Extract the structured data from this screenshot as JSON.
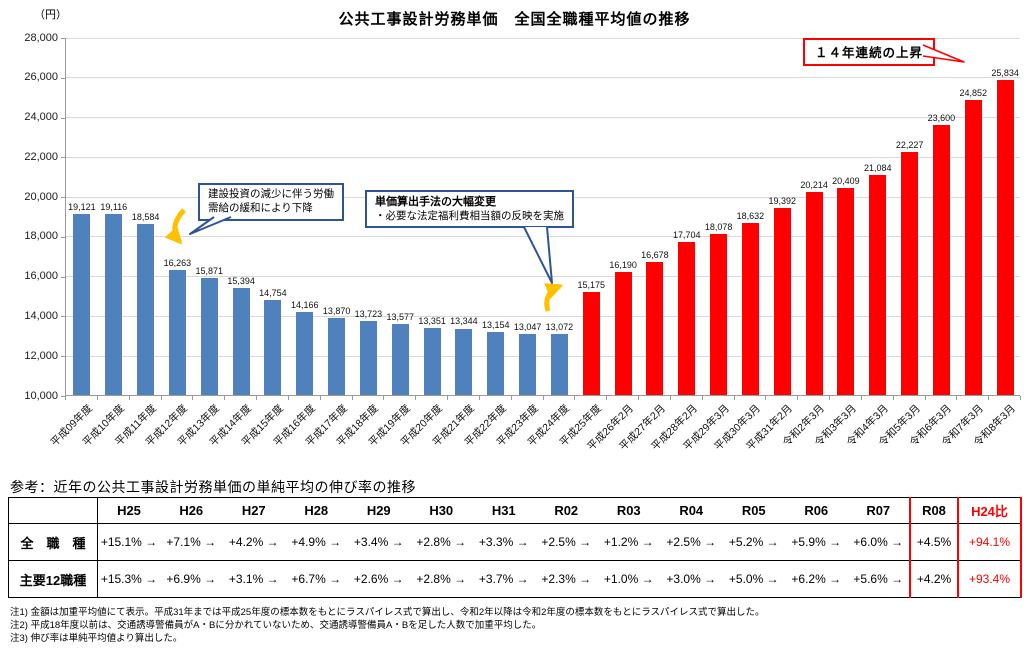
{
  "title": "公共工事設計労務単価　全国全職種平均値の推移",
  "y_unit": "（円）",
  "chart_data": {
    "type": "bar",
    "title": "公共工事設計労務単価　全国全職種平均値の推移",
    "ylabel": "（円）",
    "ylim": [
      10000,
      28000
    ],
    "ytick_step": 2000,
    "grid": true,
    "legend": "none",
    "categories": [
      "平成09年度",
      "平成10年度",
      "平成11年度",
      "平成12年度",
      "平成13年度",
      "平成14年度",
      "平成15年度",
      "平成16年度",
      "平成17年度",
      "平成18年度",
      "平成19年度",
      "平成20年度",
      "平成21年度",
      "平成22年度",
      "平成23年度",
      "平成24年度",
      "平成25年度",
      "平成26年2月",
      "平成27年2月",
      "平成28年2月",
      "平成29年3月",
      "平成30年3月",
      "平成31年2月",
      "令和2年3月",
      "令和3年3月",
      "令和4年3月",
      "令和5年3月",
      "令和6年3月",
      "令和7年3月",
      "令和8年3月"
    ],
    "values": [
      19121,
      19116,
      18584,
      16263,
      15871,
      15394,
      14754,
      14166,
      13870,
      13723,
      13577,
      13351,
      13344,
      13154,
      13047,
      13072,
      15175,
      16190,
      16678,
      17704,
      18078,
      18632,
      19392,
      20214,
      20409,
      21084,
      22227,
      23600,
      24852,
      25834
    ],
    "red_from_index": 16,
    "colors": {
      "bar_blue": "#4F81BD",
      "bar_red": "#FF0000",
      "note_border": "#2E5496",
      "arrow_orange": "#FFC000",
      "highlight_red": "#FF0000"
    }
  },
  "annotations": {
    "decline_note": {
      "lines": [
        "建設投資の減少に伴う労働",
        "需給の緩和により下降"
      ]
    },
    "method_change_note": {
      "title": "単価算出手法の大幅変更",
      "body": "・必要な法定福利費相当額の反映を実施"
    },
    "streak_note": {
      "label": "１４年連続の上昇"
    }
  },
  "table": {
    "caption": "参考：近年の公共工事設計労務単価の単純平均の伸び率の推移",
    "arrow": "→",
    "columns": [
      "H25",
      "H26",
      "H27",
      "H28",
      "H29",
      "H30",
      "H31",
      "R02",
      "R03",
      "R04",
      "R05",
      "R06",
      "R07",
      "R08",
      "H24比"
    ],
    "rows": [
      {
        "label": "全　職　種",
        "values": [
          "+15.1%",
          "+7.1%",
          "+4.2%",
          "+4.9%",
          "+3.4%",
          "+2.8%",
          "+3.3%",
          "+2.5%",
          "+1.2%",
          "+2.5%",
          "+5.2%",
          "+5.9%",
          "+6.0%",
          "+4.5%",
          "+94.1%"
        ]
      },
      {
        "label": "主要12職種",
        "values": [
          "+15.3%",
          "+6.9%",
          "+3.1%",
          "+6.7%",
          "+2.6%",
          "+2.8%",
          "+3.7%",
          "+2.3%",
          "+1.0%",
          "+3.0%",
          "+5.0%",
          "+6.2%",
          "+5.6%",
          "+4.2%",
          "+93.4%"
        ]
      }
    ]
  },
  "footnotes": [
    "注1) 金額は加重平均値にて表示。平成31年までは平成25年度の標本数をもとにラスパイレス式で算出し、令和2年以降は令和2年度の標本数をもとにラスパイレス式で算出した。",
    "注2) 平成18年度以前は、交通誘導警備員がA・Bに分かれていないため、交通誘導警備員A・Bを足した人数で加重平均した。",
    "注3) 伸び率は単純平均値より算出した。"
  ]
}
